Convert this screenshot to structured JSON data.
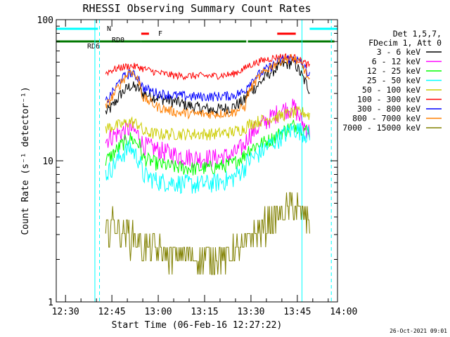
{
  "chart_data": {
    "type": "line",
    "title": "RHESSI Observing Summary Count Rates",
    "xlabel": "Start Time (06-Feb-16 12:27:22)",
    "ylabel": "Count Rate (s⁻¹ detector⁻¹)",
    "yscale": "log",
    "ylim": [
      1,
      100
    ],
    "xlim_minutes": [
      -3,
      88
    ],
    "x_ticks": [
      {
        "label": "12:30",
        "minute": 0
      },
      {
        "label": "12:45",
        "minute": 15
      },
      {
        "label": "13:00",
        "minute": 30
      },
      {
        "label": "13:15",
        "minute": 45
      },
      {
        "label": "13:30",
        "minute": 60
      },
      {
        "label": "13:45",
        "minute": 75
      },
      {
        "label": "14:00",
        "minute": 90
      }
    ],
    "y_ticks": [
      {
        "label": "1",
        "value": 1
      },
      {
        "label": "10",
        "value": 10
      },
      {
        "label": "100",
        "value": 100
      }
    ],
    "legend_header": [
      "Det 1,5,7,",
      "FDecim 1, Att 0"
    ],
    "legend_position": "right",
    "timestamp": "26-Oct-2021 09:01",
    "annotations": {
      "night": {
        "label": "N",
        "color": "#00ffff",
        "segments": [
          [
            -3,
            10.5
          ],
          [
            79,
            88
          ]
        ]
      },
      "flare": {
        "label": "F",
        "color": "#ff0000",
        "segments": [
          [
            24.5,
            27
          ],
          [
            68.5,
            74.5
          ]
        ]
      },
      "decimation": {
        "color": "#007700",
        "segments": [
          [
            -3,
            24.5
          ],
          [
            24.5,
            58.5
          ],
          [
            59,
            87
          ]
        ],
        "labels": [
          "RD6",
          "RD0"
        ]
      },
      "saa_boundaries": [
        9.5,
        11,
        76.5,
        86
      ]
    },
    "series": [
      {
        "name": "3 - 6 keV",
        "color": "#000000",
        "x": [
          13,
          15,
          18,
          21,
          24,
          25,
          30,
          36,
          42,
          48,
          54,
          58,
          59,
          62,
          66,
          70,
          74,
          77,
          79
        ],
        "y": [
          22,
          24,
          30,
          34,
          32,
          30,
          28,
          26,
          24,
          23,
          24,
          27,
          30,
          34,
          42,
          48,
          50,
          38,
          32
        ]
      },
      {
        "name": "6 - 12 keV",
        "color": "#ff00ff",
        "x": [
          13,
          15,
          18,
          21,
          24,
          25,
          30,
          36,
          42,
          48,
          54,
          58,
          59,
          62,
          66,
          70,
          74,
          77,
          79
        ],
        "y": [
          14,
          15,
          16,
          17,
          15,
          13,
          12,
          11,
          10.5,
          10.5,
          11,
          13,
          15,
          17,
          20,
          23,
          24,
          18,
          16
        ]
      },
      {
        "name": "12 - 25 keV",
        "color": "#00ff00",
        "x": [
          13,
          15,
          18,
          21,
          24,
          25,
          30,
          36,
          42,
          48,
          54,
          58,
          59,
          62,
          66,
          70,
          74,
          77,
          79
        ],
        "y": [
          10,
          11,
          13,
          14.5,
          13,
          10.5,
          9.5,
          9,
          8.8,
          9,
          9.5,
          11,
          12,
          13,
          14,
          16,
          18,
          17,
          16
        ]
      },
      {
        "name": "25 - 50 keV",
        "color": "#00ffff",
        "x": [
          13,
          15,
          18,
          21,
          24,
          25,
          30,
          36,
          42,
          48,
          54,
          58,
          59,
          62,
          66,
          70,
          74,
          77,
          79
        ],
        "y": [
          8,
          9,
          11,
          12.5,
          10,
          8,
          7.2,
          7,
          6.8,
          7,
          7.5,
          9,
          10,
          11,
          13,
          15,
          17,
          16,
          15
        ]
      },
      {
        "name": "50 - 100 keV",
        "color": "#cccc00",
        "x": [
          13,
          15,
          18,
          21,
          24,
          25,
          30,
          36,
          42,
          48,
          54,
          58,
          59,
          62,
          66,
          70,
          74,
          77,
          79
        ],
        "y": [
          17,
          17.5,
          18,
          19,
          18,
          16,
          15.5,
          15.5,
          15.5,
          15.5,
          16,
          17,
          18,
          19,
          20,
          21,
          22,
          22,
          21
        ]
      },
      {
        "name": "100 - 300 keV",
        "color": "#ff0000",
        "x": [
          13,
          15,
          18,
          21,
          24,
          25,
          30,
          36,
          42,
          48,
          54,
          58,
          59,
          62,
          66,
          70,
          74,
          77,
          79
        ],
        "y": [
          42,
          44,
          46,
          47,
          46,
          45,
          42,
          40,
          40,
          40,
          41,
          45,
          47,
          50,
          53,
          55,
          54,
          50,
          47
        ]
      },
      {
        "name": "300 - 800 keV",
        "color": "#0000ff",
        "x": [
          13,
          15,
          18,
          21,
          24,
          25,
          30,
          36,
          42,
          48,
          54,
          58,
          59,
          62,
          66,
          70,
          74,
          77,
          79
        ],
        "y": [
          26,
          30,
          38,
          42,
          38,
          33,
          30,
          29,
          28.5,
          28.5,
          29,
          31,
          35,
          40,
          46,
          52,
          54,
          47,
          40
        ]
      },
      {
        "name": "800 - 7000 keV",
        "color": "#ff7f00",
        "x": [
          13,
          15,
          18,
          21,
          24,
          25,
          30,
          36,
          42,
          48,
          54,
          58,
          59,
          62,
          66,
          70,
          74,
          77,
          79
        ],
        "y": [
          24,
          28,
          36,
          44,
          36,
          28,
          24,
          22,
          21.5,
          21.5,
          22,
          24,
          30,
          38,
          46,
          52,
          53,
          46,
          36
        ]
      },
      {
        "name": "7000 - 15000 keV",
        "color": "#808000",
        "x": [
          13,
          15,
          18,
          21,
          24,
          25,
          30,
          36,
          42,
          48,
          54,
          58,
          59,
          62,
          66,
          70,
          74,
          77,
          79
        ],
        "y": [
          3,
          3.6,
          3.2,
          2.9,
          2.7,
          2.5,
          2.3,
          2.2,
          2.1,
          2.1,
          2.2,
          2.5,
          2.8,
          3.2,
          3.7,
          4.2,
          4.8,
          4.2,
          3.8
        ]
      }
    ]
  }
}
